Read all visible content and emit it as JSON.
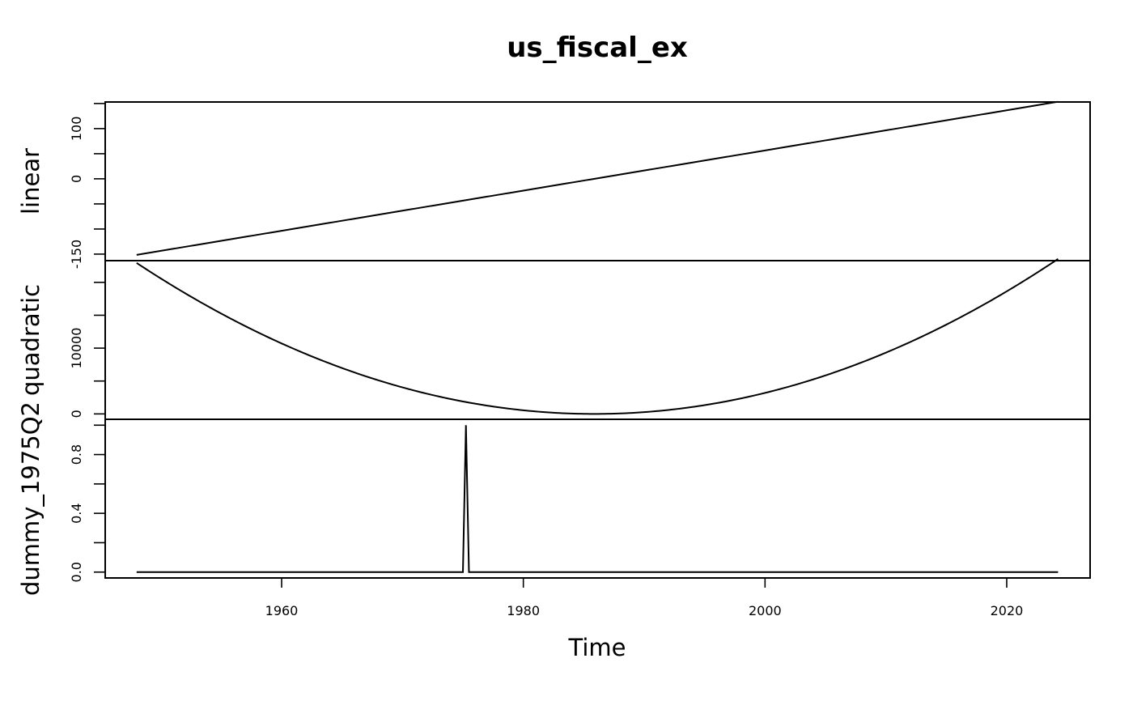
{
  "chart_data": {
    "type": "line",
    "title": "us_fiscal_ex",
    "xlabel": "Time",
    "xlim": [
      1945.4,
      2026.9
    ],
    "x_ticks": [
      1960,
      1980,
      2000,
      2020
    ],
    "x_tick_labels": [
      "1960",
      "1980",
      "2000",
      "2020"
    ],
    "grid": false,
    "legend": "none",
    "start": 1948.0,
    "end": 2024.25,
    "frequency": 4,
    "panels": [
      {
        "name": "linear",
        "ylabel": "linear",
        "ylim": [
          -163,
          153
        ],
        "y_ticks": [
          -150,
          -100,
          -50,
          0,
          50,
          100,
          150
        ],
        "y_tick_labels": [
          "-150",
          "",
          "",
          "0",
          "",
          "100",
          ""
        ],
        "series": {
          "formula": "t - 152.5",
          "t_start": 1,
          "t_end": 306
        }
      },
      {
        "name": "quadratic",
        "ylabel": "quadratic",
        "ylim": [
          -820,
          23300
        ],
        "y_ticks": [
          0,
          5000,
          10000,
          15000,
          20000
        ],
        "y_tick_labels": [
          "0",
          "",
          "10000",
          "",
          ""
        ],
        "series": {
          "formula": "(t - 152.5)^2",
          "t_start": 1,
          "t_end": 306
        }
      },
      {
        "name": "dummy_1975Q2",
        "ylabel": "dummy_1975Q2",
        "ylim": [
          -0.04,
          1.04
        ],
        "y_ticks": [
          0,
          0.2,
          0.4,
          0.6,
          0.8,
          1.0
        ],
        "y_tick_labels": [
          "0.0",
          "",
          "0.4",
          "",
          "0.8",
          ""
        ],
        "series": {
          "formula": "1 at 1975Q2, else 0",
          "spike_x": 1975.25,
          "t_start": 1,
          "t_end": 306
        }
      }
    ]
  }
}
